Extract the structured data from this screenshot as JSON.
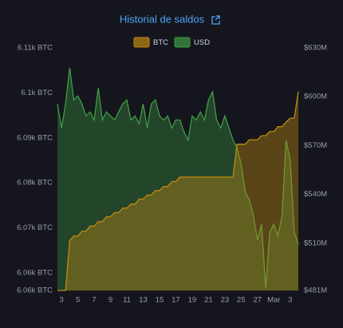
{
  "chart_data": {
    "type": "area",
    "title": "Historial de saldos",
    "categories": [
      null,
      "3",
      null,
      null,
      null,
      "5",
      null,
      null,
      null,
      "7",
      null,
      null,
      null,
      "9",
      null,
      null,
      null,
      "11",
      null,
      null,
      null,
      "13",
      null,
      null,
      null,
      "15",
      null,
      null,
      null,
      "17",
      null,
      null,
      null,
      "19",
      null,
      null,
      null,
      "21",
      null,
      null,
      null,
      "23",
      null,
      null,
      null,
      "25",
      null,
      null,
      null,
      "27",
      null,
      null,
      null,
      "Mar",
      null,
      null,
      null,
      "3",
      null,
      null
    ],
    "series": [
      {
        "name": "USD",
        "color": "#3f9d45",
        "axis": "y2",
        "values": [
          595.6,
          580.8,
          595.6,
          617.7,
          598.0,
          600.5,
          595.6,
          588.2,
          590.7,
          585.7,
          605.4,
          585.7,
          590.7,
          588.2,
          585.7,
          590.7,
          595.6,
          598.0,
          585.7,
          588.2,
          583.3,
          595.6,
          580.8,
          595.6,
          598.0,
          588.2,
          585.7,
          588.2,
          580.8,
          585.7,
          585.7,
          578.4,
          573.4,
          588.2,
          585.7,
          590.7,
          585.7,
          598.0,
          603.0,
          585.7,
          580.8,
          588.2,
          580.8,
          573.4,
          568.5,
          558.7,
          541.5,
          536.6,
          526.7,
          512.0,
          521.8,
          482.5,
          516.9,
          521.8,
          514.4,
          526.7,
          573.4,
          561.1,
          516.9,
          509.5
        ]
      },
      {
        "name": "BTC",
        "color": "#c08a12",
        "values": [
          6056.1,
          6056.1,
          6056.1,
          6067.2,
          6068.2,
          6068.2,
          6069.3,
          6069.3,
          6070.4,
          6070.4,
          6071.4,
          6071.4,
          6072.5,
          6072.5,
          6073.4,
          6073.4,
          6074.4,
          6074.4,
          6075.3,
          6075.3,
          6076.4,
          6076.4,
          6077.3,
          6077.3,
          6078.3,
          6078.3,
          6079.2,
          6079.2,
          6080.3,
          6080.3,
          6081.3,
          6081.3,
          6081.3,
          6081.3,
          6081.3,
          6081.3,
          6081.3,
          6081.3,
          6081.3,
          6081.3,
          6081.3,
          6081.3,
          6081.3,
          6081.3,
          6088.6,
          6088.6,
          6088.6,
          6089.6,
          6089.6,
          6089.6,
          6090.5,
          6090.5,
          6091.4,
          6091.4,
          6092.5,
          6092.5,
          6093.5,
          6094.4,
          6094.4,
          6100.3
        ]
      }
    ],
    "ylim": [
      6056.1,
      6110
    ],
    "yticks": [
      {
        "value": 6110,
        "label": "6.11k BTC"
      },
      {
        "value": 6100,
        "label": "6.1k BTC"
      },
      {
        "value": 6090,
        "label": "6.09k BTC"
      },
      {
        "value": 6080,
        "label": "6.08k BTC"
      },
      {
        "value": 6070,
        "label": "6.07k BTC"
      },
      {
        "value": 6060,
        "label": "6.06k BTC"
      },
      {
        "value": 6056.1,
        "label": "6.06k BTC"
      }
    ],
    "y2lim": [
      481,
      630
    ],
    "y2ticks": [
      {
        "value": 630,
        "label": "$630M"
      },
      {
        "value": 600,
        "label": "$600M"
      },
      {
        "value": 570,
        "label": "$570M"
      },
      {
        "value": 540,
        "label": "$540M"
      },
      {
        "value": 510,
        "label": "$510M"
      },
      {
        "value": 481,
        "label": "$481M"
      }
    ]
  }
}
